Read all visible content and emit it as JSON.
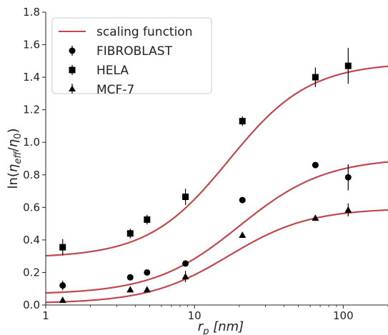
{
  "chart_data": {
    "type": "scatter",
    "xscale": "log",
    "xlim": [
      1,
      200
    ],
    "ylim": [
      0.0,
      1.8
    ],
    "xticks": [
      1,
      10,
      100
    ],
    "xtick_labels": [
      "1",
      "10",
      "100"
    ],
    "yticks": [
      0.0,
      0.2,
      0.4,
      0.6,
      0.8,
      1.0,
      1.2,
      1.4,
      1.6,
      1.8
    ],
    "ytick_labels": [
      "0.0",
      "0.2",
      "0.4",
      "0.6",
      "0.8",
      "1.0",
      "1.2",
      "1.4",
      "1.6",
      "1.8"
    ],
    "xlabel": {
      "base": "r",
      "sub": "p",
      "rest": " [nm]"
    },
    "ylabel": {
      "pre": "ln(",
      "sym1": "η",
      "sub1": "eff",
      "slash": "/",
      "sym2": "η",
      "sub2": "0",
      "post": ")"
    },
    "legend_position": "top-left",
    "grid": false,
    "line_color": "#c0474b",
    "marker_color": "#000000",
    "fit": {
      "name": "scaling function",
      "curves": [
        {
          "low": 0.29,
          "high": 1.49,
          "x0": 17.0,
          "n": 1.6
        },
        {
          "low": 0.065,
          "high": 0.905,
          "x0": 20.0,
          "n": 1.5
        },
        {
          "low": 0.01,
          "high": 0.595,
          "x0": 17.0,
          "n": 1.6
        }
      ]
    },
    "series": [
      {
        "name": "FIBROBLAST",
        "marker": "circle",
        "x": [
          1.3,
          3.7,
          4.8,
          8.7,
          21,
          65,
          108
        ],
        "y": [
          0.12,
          0.17,
          0.2,
          0.255,
          0.645,
          0.86,
          0.785
        ],
        "err": [
          0.03,
          0.0,
          0.0,
          0.0,
          0.0,
          0.0,
          0.08
        ]
      },
      {
        "name": "HELA",
        "marker": "square",
        "x": [
          1.3,
          3.7,
          4.8,
          8.7,
          21,
          65,
          108
        ],
        "y": [
          0.355,
          0.44,
          0.525,
          0.665,
          1.13,
          1.4,
          1.47
        ],
        "err": [
          0.05,
          0.03,
          0.03,
          0.05,
          0.03,
          0.06,
          0.11
        ]
      },
      {
        "name": "MCF-7",
        "marker": "triangle",
        "x": [
          1.3,
          3.7,
          4.8,
          8.7,
          21,
          65,
          108
        ],
        "y": [
          0.03,
          0.095,
          0.095,
          0.175,
          0.43,
          0.535,
          0.585
        ],
        "err": [
          0.0,
          0.0,
          0.0,
          0.035,
          0.0,
          0.0,
          0.04
        ]
      }
    ]
  }
}
